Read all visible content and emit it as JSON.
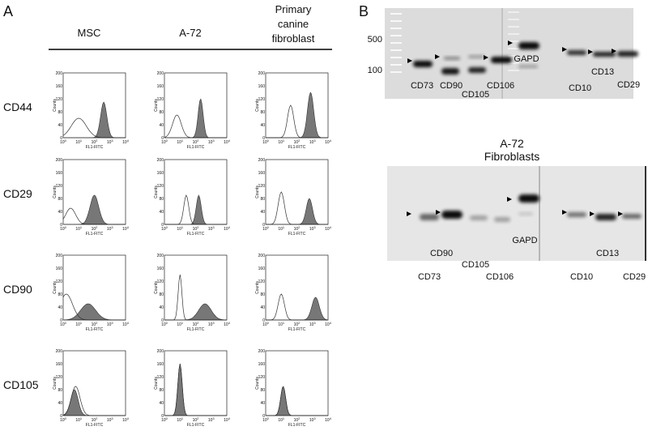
{
  "panel_a": {
    "label": "A",
    "columns": [
      {
        "lines": [
          "MSC"
        ]
      },
      {
        "lines": [
          "A-72"
        ]
      },
      {
        "lines": [
          "Primary",
          "canine",
          "fibroblast"
        ]
      }
    ],
    "rows": [
      "CD44",
      "CD29",
      "CD90",
      "CD105"
    ],
    "plot": {
      "y_axis_label": "Counts",
      "x_axis_label": "FL1-FITC",
      "yticks": [
        "0",
        "40",
        "80",
        "120",
        "160",
        "200"
      ],
      "xticks": [
        {
          "base": "10",
          "exp": "0"
        },
        {
          "base": "10",
          "exp": "1"
        },
        {
          "base": "10",
          "exp": "2"
        },
        {
          "base": "10",
          "exp": "3"
        },
        {
          "base": "10",
          "exp": "4"
        }
      ]
    }
  },
  "panel_b": {
    "label": "B",
    "top_gel": {
      "size_markers": [
        "500",
        "100"
      ],
      "lanes": [
        "CD73",
        "CD90",
        "CD105",
        "CD106",
        "GAPD",
        "CD10",
        "CD13",
        "CD29"
      ]
    },
    "bottom_title": [
      "A-72",
      "Fibroblasts"
    ],
    "bottom_gel": {
      "lanes": [
        "CD90",
        "CD105",
        "CD73",
        "CD106",
        "GAPD",
        "CD13",
        "CD10",
        "CD29"
      ]
    }
  }
}
